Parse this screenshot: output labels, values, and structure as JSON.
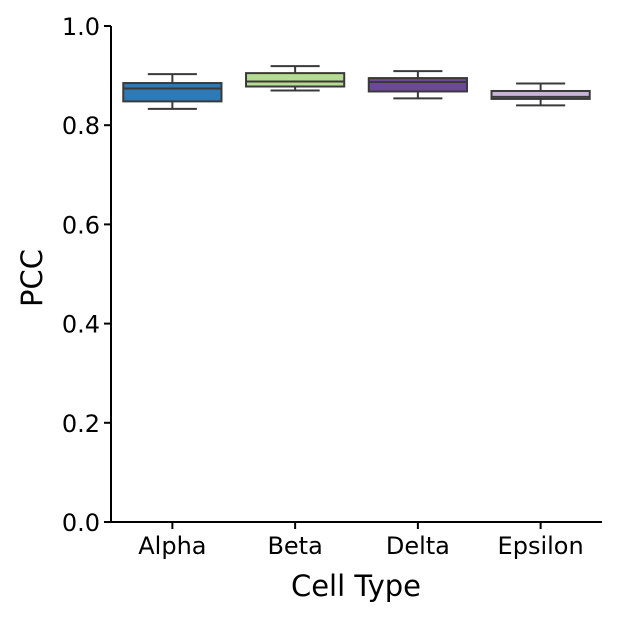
{
  "chart_data": {
    "type": "box",
    "xlabel": "Cell Type",
    "ylabel": "PCC",
    "ylim": [
      0.0,
      1.0
    ],
    "yticks": [
      "0.0",
      "0.2",
      "0.4",
      "0.6",
      "0.8",
      "1.0"
    ],
    "grid": false,
    "categories": [
      "Alpha",
      "Beta",
      "Delta",
      "Epsilon"
    ],
    "boxes": [
      {
        "category": "Alpha",
        "color": "#2f7ab5",
        "whisker_low": 0.833,
        "q1": 0.848,
        "median": 0.874,
        "q3": 0.885,
        "whisker_high": 0.903
      },
      {
        "category": "Beta",
        "color": "#b5dc91",
        "whisker_low": 0.87,
        "q1": 0.878,
        "median": 0.888,
        "q3": 0.905,
        "whisker_high": 0.919
      },
      {
        "category": "Delta",
        "color": "#6c489a",
        "whisker_low": 0.854,
        "q1": 0.868,
        "median": 0.887,
        "q3": 0.895,
        "whisker_high": 0.909
      },
      {
        "category": "Epsilon",
        "color": "#c9b4d9",
        "whisker_low": 0.84,
        "q1": 0.853,
        "median": 0.857,
        "q3": 0.869,
        "whisker_high": 0.884
      }
    ]
  }
}
